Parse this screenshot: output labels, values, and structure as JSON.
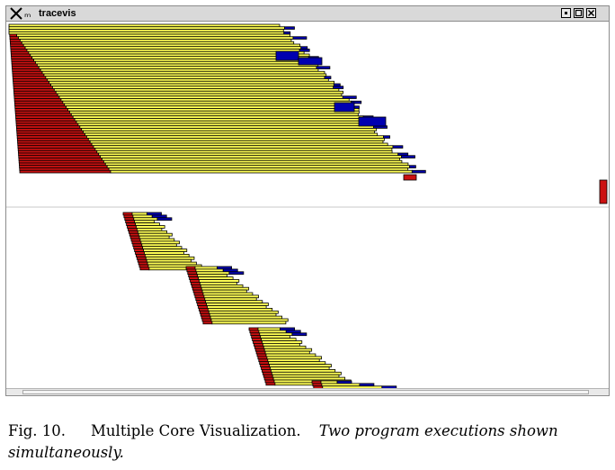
{
  "window": {
    "title": "tracevis",
    "menu_icon": "ₘ",
    "icons": {
      "app": "x-logo-icon",
      "menu": "window-menu-icon",
      "minimize": "minimize-icon",
      "maximize": "maximize-icon",
      "close": "close-icon"
    }
  },
  "colors": {
    "background": "#ffffff",
    "titlebar": "#d9d9d9",
    "trace_yellow": "#ffff55",
    "trace_blue": "#0000b0",
    "trace_red": "#cc1111",
    "outline": "#000000",
    "divider": "#c8c8c8"
  },
  "caption": {
    "fig_number": "Fig. 10.",
    "title": "Multiple Core Visualization.",
    "description": "Two program executions shown simultaneously."
  }
}
